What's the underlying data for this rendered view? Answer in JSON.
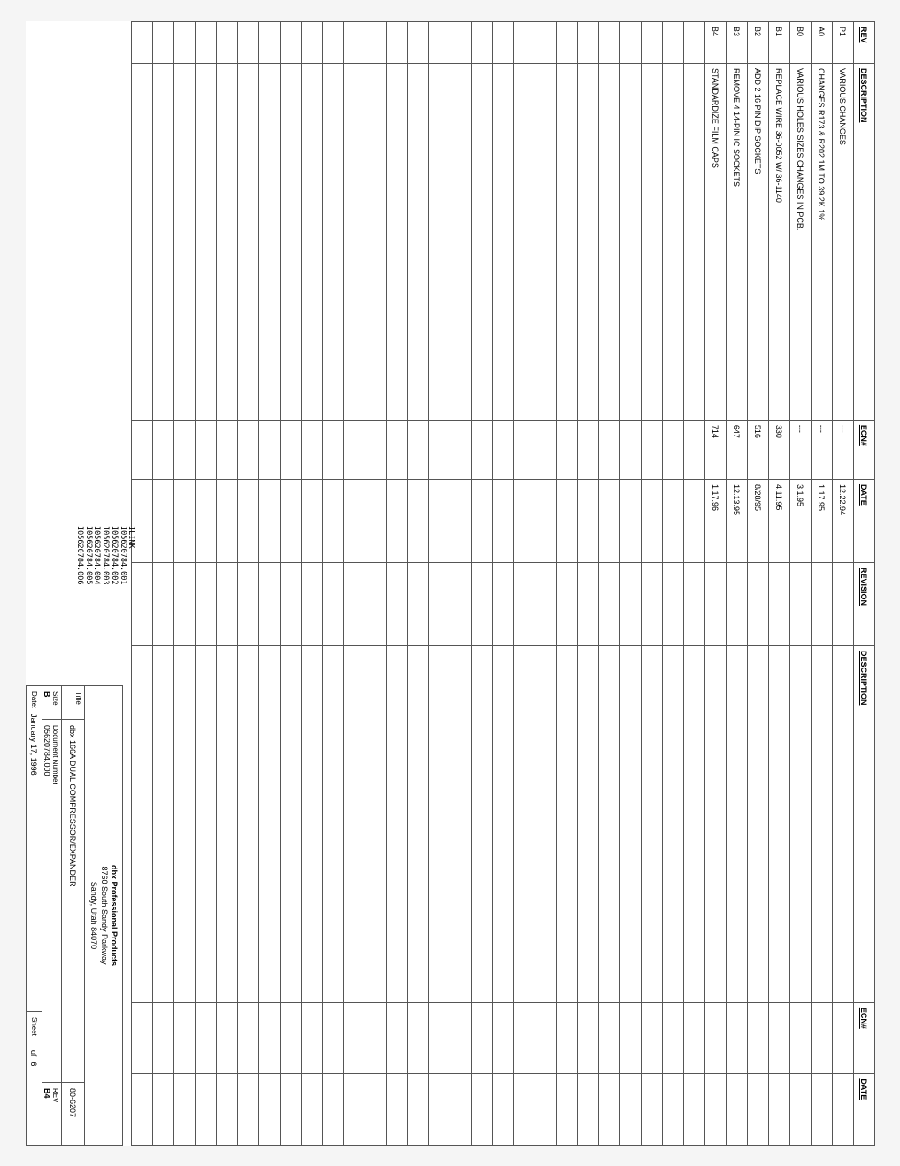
{
  "headers": {
    "rev": "REV",
    "description": "DESCRIPTION",
    "ecn": "ECN#",
    "date": "DATE",
    "revision": "REVISION",
    "description2": "DESCRIPTION",
    "ecn2": "ECN#",
    "date2": "DATE"
  },
  "revisions": [
    {
      "rev": "P1",
      "desc": "VARIOUS CHANGES",
      "ecn": "---",
      "date": "12.22.94"
    },
    {
      "rev": "A0",
      "desc": "CHANGES R173 & R202 1M TO 39.2K 1%",
      "ecn": "---",
      "date": "1.17.95"
    },
    {
      "rev": "B0",
      "desc": "VARIOUS HOLES SIZES CHANGES IN PCB.",
      "ecn": "---",
      "date": "3.1.95"
    },
    {
      "rev": "B1",
      "desc": "REPLACE WIRE 36-0052 W/ 36-1140",
      "ecn": "330",
      "date": "4.11.95"
    },
    {
      "rev": "B2",
      "desc": "ADD 2 16 PIN DIP SOCKETS",
      "ecn": "516",
      "date": "8/28/95"
    },
    {
      "rev": "B3",
      "desc": "REMOVE 4 14-PIN IC SOCKETS",
      "ecn": "647",
      "date": "12.13.95"
    },
    {
      "rev": "B4",
      "desc": "STANDARDIZE FILM CAPS",
      "ecn": "714",
      "date": "1.17.96"
    }
  ],
  "empty_row_count": 27,
  "ilink": {
    "header": "ILINK",
    "files": [
      "I05620784.001",
      "I05620784.002",
      "I05620784.003",
      "I05620784.004",
      "I05620784.005",
      "I05620784.006"
    ]
  },
  "title_block": {
    "company_name": "dbx Professional Products",
    "address_line1": "8760 South Sandy Parkway",
    "address_line2": "Sandy, Utah 84070",
    "title_label": "Title",
    "title_value": "dbx 166A DUAL COMPRESSOR/EXPANDER",
    "drawing_number": "80-6207",
    "size_label": "Size",
    "size_value": "B",
    "docnum_label": "Document Number",
    "docnum_value": "05620784.000",
    "rev_label": "REV",
    "rev_value": "B4",
    "date_label": "Date:",
    "date_value": "January 17, 1996",
    "sheet_label": "Sheet",
    "sheet_of": "of",
    "sheet_total": "6"
  },
  "colors": {
    "border": "#555555",
    "background": "#ffffff",
    "text": "#222222"
  }
}
